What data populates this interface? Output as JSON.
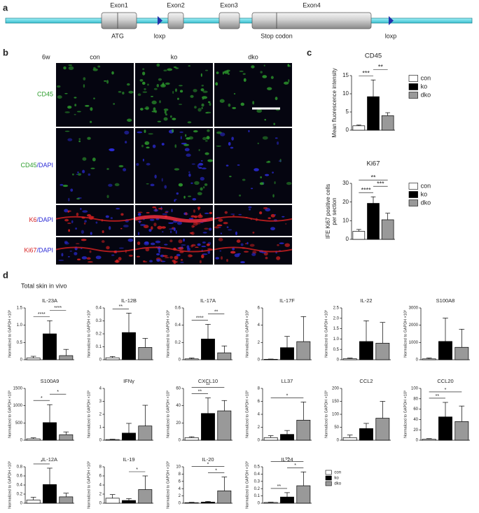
{
  "panel_labels": [
    "a",
    "b",
    "c",
    "d"
  ],
  "gene_diagram": {
    "exons": [
      "Exon1",
      "Exon2",
      "Exon3",
      "Exon4"
    ],
    "features": [
      "ATG",
      "loxp",
      "Stop codon",
      "loxp"
    ]
  },
  "images": {
    "timepoint": "6w",
    "columns": [
      "con",
      "ko",
      "dko"
    ],
    "rows": [
      {
        "parts": [
          "CD45"
        ],
        "colors": [
          "#2e9e2e"
        ]
      },
      {
        "parts": [
          "CD45",
          "/DAPI"
        ],
        "colors": [
          "#2e9e2e",
          "#2b2bd6"
        ]
      },
      {
        "parts": [
          "K6",
          "/DAPI"
        ],
        "colors": [
          "#d62020",
          "#2b2bd6"
        ]
      },
      {
        "parts": [
          "Ki67",
          "/DAPI"
        ],
        "colors": [
          "#d62020",
          "#2b2bd6"
        ]
      }
    ]
  },
  "section_title": "Total skin in vivo",
  "chart_data": [
    {
      "type": "bar",
      "title": "CD45",
      "ylabel": [
        "Mean fluorescence intensity"
      ],
      "categories": [
        "con",
        "ko",
        "dko"
      ],
      "colors": [
        "#ffffff",
        "#000000",
        "#999999"
      ],
      "legend": true,
      "values": [
        1.2,
        9.2,
        4.0
      ],
      "errors": [
        0.2,
        4.6,
        0.8
      ],
      "ylim": [
        0,
        15
      ],
      "yticks": [
        0,
        5,
        10,
        15
      ],
      "brackets": [
        {
          "between": [
            "con",
            "ko"
          ],
          "label": "***"
        },
        {
          "between": [
            "ko",
            "dko"
          ],
          "label": "**"
        }
      ]
    },
    {
      "type": "bar",
      "title": "Ki67",
      "ylabel": [
        "IFE Ki67 positive cells",
        "per section"
      ],
      "categories": [
        "con",
        "ko",
        "dko"
      ],
      "colors": [
        "#ffffff",
        "#000000",
        "#999999"
      ],
      "legend": true,
      "values": [
        4.3,
        19.3,
        10.5
      ],
      "errors": [
        1.0,
        3.5,
        3.5
      ],
      "ylim": [
        0,
        30
      ],
      "yticks": [
        0,
        10,
        20,
        30
      ],
      "brackets": [
        {
          "between": [
            "con",
            "ko"
          ],
          "label": "****"
        },
        {
          "between": [
            "ko",
            "dko"
          ],
          "label": "***"
        },
        {
          "between": [
            "con",
            "dko"
          ],
          "label": "**"
        }
      ]
    },
    {
      "type": "bar",
      "title": "IL-23A",
      "ylabel": [
        "Normalized to GAPDH ×10³"
      ],
      "categories": [
        "con",
        "ko",
        "dko"
      ],
      "colors": [
        "#ffffff",
        "#000000",
        "#999999"
      ],
      "values": [
        0.05,
        0.75,
        0.12
      ],
      "errors": [
        0.05,
        0.38,
        0.18
      ],
      "ylim": [
        0,
        1.5
      ],
      "yticks": [
        0,
        0.5,
        {
          "value": 1,
          "label": "1.0"
        },
        1.5
      ],
      "brackets": [
        {
          "between": [
            "con",
            "ko"
          ],
          "label": "****"
        },
        {
          "between": [
            "ko",
            "dko"
          ],
          "label": "****"
        }
      ]
    },
    {
      "type": "bar",
      "title": "IL-12B",
      "ylabel": [
        "Normalized to GAPDH ×10³"
      ],
      "categories": [
        "con",
        "ko",
        "dko"
      ],
      "colors": [
        "#ffffff",
        "#000000",
        "#999999"
      ],
      "values": [
        0.015,
        0.21,
        0.095
      ],
      "errors": [
        0.01,
        0.15,
        0.07
      ],
      "ylim": [
        0,
        0.4
      ],
      "yticks": [
        0,
        0.1,
        0.2,
        0.3,
        0.4
      ],
      "brackets": [
        {
          "between": [
            "con",
            "ko"
          ],
          "label": "**"
        }
      ]
    },
    {
      "type": "bar",
      "title": "IL-17A",
      "ylabel": [
        "Normalized to GAPDH ×10³"
      ],
      "categories": [
        "con",
        "ko",
        "dko"
      ],
      "colors": [
        "#ffffff",
        "#000000",
        "#999999"
      ],
      "values": [
        0.01,
        0.24,
        0.08
      ],
      "errors": [
        0.01,
        0.17,
        0.08
      ],
      "ylim": [
        0,
        0.6
      ],
      "yticks": [
        0,
        0.2,
        0.4,
        0.6
      ],
      "brackets": [
        {
          "between": [
            "con",
            "ko"
          ],
          "label": "****"
        },
        {
          "between": [
            "ko",
            "dko"
          ],
          "label": "**"
        }
      ]
    },
    {
      "type": "bar",
      "title": "IL-17F",
      "ylabel": [
        "Normalized to GAPDH ×10³"
      ],
      "categories": [
        "con",
        "ko",
        "dko"
      ],
      "colors": [
        "#ffffff",
        "#000000",
        "#999999"
      ],
      "values": [
        0.05,
        1.4,
        2.1
      ],
      "errors": [
        0.03,
        1.3,
        2.9
      ],
      "ylim": [
        0,
        6
      ],
      "yticks": [
        0,
        2,
        4,
        6
      ],
      "brackets": []
    },
    {
      "type": "bar",
      "title": "IL-22",
      "ylabel": [
        "Normalized to GAPDH ×10³"
      ],
      "categories": [
        "con",
        "ko",
        "dko"
      ],
      "colors": [
        "#ffffff",
        "#000000",
        "#999999"
      ],
      "values": [
        0.05,
        0.88,
        0.8
      ],
      "errors": [
        0.03,
        1.0,
        1.0
      ],
      "ylim": [
        0,
        2.5
      ],
      "yticks": [
        0,
        0.5,
        {
          "value": 1,
          "label": "1.0"
        },
        1.5,
        {
          "value": 2,
          "label": "2.0"
        },
        2.5
      ],
      "brackets": []
    },
    {
      "type": "bar",
      "title": "S100A8",
      "ylabel": [
        "Normalized to GAPDH ×10³"
      ],
      "categories": [
        "con",
        "ko",
        "dko"
      ],
      "colors": [
        "#ffffff",
        "#000000",
        "#999999"
      ],
      "values": [
        50,
        1060,
        720
      ],
      "errors": [
        50,
        1350,
        1050
      ],
      "ylim": [
        0,
        3000
      ],
      "yticks": [
        0,
        1000,
        2000,
        3000
      ],
      "brackets": []
    },
    {
      "type": "bar",
      "title": "S100A9",
      "ylabel": [
        "Normalized to GAPDH ×10³"
      ],
      "categories": [
        "con",
        "ko",
        "dko"
      ],
      "colors": [
        "#ffffff",
        "#000000",
        "#999999"
      ],
      "values": [
        40,
        510,
        160
      ],
      "errors": [
        30,
        520,
        80
      ],
      "ylim": [
        0,
        1500
      ],
      "yticks": [
        0,
        500,
        1000,
        1500
      ],
      "brackets": [
        {
          "between": [
            "con",
            "ko"
          ],
          "label": "*"
        },
        {
          "between": [
            "ko",
            "dko"
          ],
          "label": "*"
        }
      ]
    },
    {
      "type": "bar",
      "title": "IFNγ",
      "ylabel": [
        "Normalized to GAPDH ×10³"
      ],
      "categories": [
        "con",
        "ko",
        "dko"
      ],
      "colors": [
        "#ffffff",
        "#000000",
        "#999999"
      ],
      "values": [
        0.05,
        0.55,
        1.1
      ],
      "errors": [
        0.03,
        0.75,
        1.6
      ],
      "ylim": [
        0,
        4
      ],
      "yticks": [
        0,
        1,
        2,
        3,
        4
      ],
      "brackets": []
    },
    {
      "type": "bar",
      "title": "CXCL10",
      "ylabel": [
        "Normalized to GAPDH ×10³"
      ],
      "categories": [
        "con",
        "ko",
        "dko"
      ],
      "colors": [
        "#ffffff",
        "#000000",
        "#999999"
      ],
      "values": [
        3,
        31,
        34
      ],
      "errors": [
        1,
        18,
        12
      ],
      "ylim": [
        0,
        60
      ],
      "yticks": [
        0,
        20,
        40,
        60
      ],
      "brackets": [
        {
          "between": [
            "con",
            "ko"
          ],
          "label": "**"
        },
        {
          "between": [
            "con",
            "dko"
          ],
          "label": "**"
        }
      ]
    },
    {
      "type": "bar",
      "title": "LL37",
      "ylabel": [
        "Normalized to GAPDH ×10³"
      ],
      "categories": [
        "con",
        "ko",
        "dko"
      ],
      "colors": [
        "#ffffff",
        "#000000",
        "#999999"
      ],
      "values": [
        0.4,
        0.9,
        3.1
      ],
      "errors": [
        0.3,
        0.6,
        2.8
      ],
      "ylim": [
        0,
        8
      ],
      "yticks": [
        0,
        2,
        4,
        6,
        8
      ],
      "brackets": [
        {
          "between": [
            "con",
            "dko"
          ],
          "label": "*"
        }
      ]
    },
    {
      "type": "bar",
      "title": "CCL2",
      "ylabel": [
        "Normalized to GAPDH ×10³"
      ],
      "categories": [
        "con",
        "ko",
        "dko"
      ],
      "colors": [
        "#ffffff",
        "#000000",
        "#999999"
      ],
      "values": [
        10,
        45,
        85
      ],
      "errors": [
        10,
        20,
        65
      ],
      "ylim": [
        0,
        200
      ],
      "yticks": [
        0,
        50,
        100,
        150,
        200
      ],
      "brackets": []
    },
    {
      "type": "bar",
      "title": "CCL20",
      "ylabel": [
        "Normalized to GAPDH ×10³"
      ],
      "categories": [
        "con",
        "ko",
        "dko"
      ],
      "colors": [
        "#ffffff",
        "#000000",
        "#999999"
      ],
      "values": [
        2,
        45,
        36
      ],
      "errors": [
        1,
        28,
        30
      ],
      "ylim": [
        0,
        100
      ],
      "yticks": [
        0,
        20,
        40,
        60,
        80,
        100
      ],
      "brackets": [
        {
          "between": [
            "con",
            "ko"
          ],
          "label": "**"
        },
        {
          "between": [
            "con",
            "dko"
          ],
          "label": "*"
        }
      ]
    },
    {
      "type": "bar",
      "title": "IL-12A",
      "ylabel": [
        "Normalized to GAPDH ×10³"
      ],
      "categories": [
        "con",
        "ko",
        "dko"
      ],
      "colors": [
        "#ffffff",
        "#000000",
        "#999999"
      ],
      "values": [
        0.07,
        0.41,
        0.14
      ],
      "errors": [
        0.06,
        0.36,
        0.08
      ],
      "ylim": [
        0,
        0.8
      ],
      "yticks": [
        0,
        0.2,
        0.4,
        0.6,
        0.8
      ],
      "brackets": [
        {
          "between": [
            "con",
            "ko"
          ],
          "label": "*"
        }
      ]
    },
    {
      "type": "bar",
      "title": "IL-19",
      "ylabel": [
        "Normalized to GAPDH ×10³"
      ],
      "categories": [
        "con",
        "ko",
        "dko"
      ],
      "colors": [
        "#ffffff",
        "#000000",
        "#999999"
      ],
      "values": [
        1.1,
        0.6,
        3.0
      ],
      "errors": [
        0.8,
        0.4,
        3.0
      ],
      "ylim": [
        0,
        8
      ],
      "yticks": [
        0,
        2,
        4,
        6,
        8
      ],
      "brackets": [
        {
          "between": [
            "ko",
            "dko"
          ],
          "label": "*"
        }
      ]
    },
    {
      "type": "bar",
      "title": "IL-20",
      "ylabel": [
        "Normalized to GAPDH ×10³"
      ],
      "categories": [
        "con",
        "ko",
        "dko"
      ],
      "colors": [
        "#ffffff",
        "#000000",
        "#999999"
      ],
      "values": [
        0.15,
        0.3,
        3.4
      ],
      "errors": [
        0.1,
        0.2,
        3.8
      ],
      "ylim": [
        0,
        10
      ],
      "yticks": [
        0,
        2,
        4,
        6,
        8,
        10
      ],
      "brackets": [
        {
          "between": [
            "ko",
            "dko"
          ],
          "label": "*"
        },
        {
          "between": [
            "con",
            "dko"
          ],
          "label": "*"
        }
      ]
    },
    {
      "type": "bar",
      "title": "IL-24",
      "ylabel": [
        "Normalized to GAPDH ×10³"
      ],
      "categories": [
        "con",
        "ko",
        "dko"
      ],
      "colors": [
        "#ffffff",
        "#000000",
        "#999999"
      ],
      "legend": true,
      "values": [
        0.01,
        0.085,
        0.24
      ],
      "errors": [
        0.005,
        0.06,
        0.19
      ],
      "ylim": [
        0,
        0.5
      ],
      "yticks": [
        0,
        0.1,
        0.2,
        0.3,
        0.4,
        0.5
      ],
      "brackets": [
        {
          "between": [
            "con",
            "ko"
          ],
          "label": "**"
        },
        {
          "between": [
            "ko",
            "dko"
          ],
          "label": "*"
        },
        {
          "between": [
            "con",
            "dko"
          ],
          "label": "**"
        }
      ]
    }
  ]
}
